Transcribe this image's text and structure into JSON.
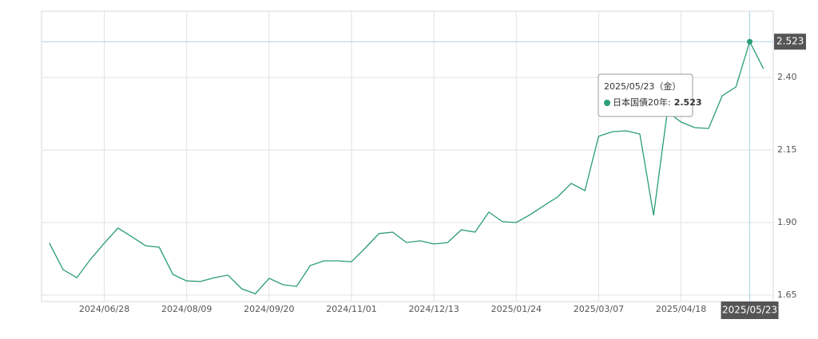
{
  "chart_data": {
    "type": "line",
    "x": [
      "2024/05/31",
      "2024/06/07",
      "2024/06/14",
      "2024/06/21",
      "2024/06/28",
      "2024/07/05",
      "2024/07/12",
      "2024/07/19",
      "2024/07/26",
      "2024/08/02",
      "2024/08/09",
      "2024/08/16",
      "2024/08/23",
      "2024/08/30",
      "2024/09/06",
      "2024/09/13",
      "2024/09/20",
      "2024/09/27",
      "2024/10/04",
      "2024/10/11",
      "2024/10/18",
      "2024/10/25",
      "2024/11/01",
      "2024/11/08",
      "2024/11/15",
      "2024/11/22",
      "2024/11/29",
      "2024/12/06",
      "2024/12/13",
      "2024/12/20",
      "2024/12/27",
      "2025/01/03",
      "2025/01/10",
      "2025/01/17",
      "2025/01/24",
      "2025/01/31",
      "2025/02/07",
      "2025/02/14",
      "2025/02/21",
      "2025/02/28",
      "2025/03/07",
      "2025/03/14",
      "2025/03/21",
      "2025/03/28",
      "2025/04/04",
      "2025/04/11",
      "2025/04/18",
      "2025/04/25",
      "2025/05/02",
      "2025/05/09",
      "2025/05/16",
      "2025/05/23",
      "2025/05/30"
    ],
    "series": [
      {
        "color": "#2a9d74",
        "values": [
          1.829,
          1.738,
          1.71,
          1.774,
          1.829,
          1.881,
          1.851,
          1.82,
          1.815,
          1.721,
          1.699,
          1.697,
          1.71,
          1.719,
          1.672,
          1.655,
          1.708,
          1.686,
          1.68,
          1.752,
          1.768,
          1.768,
          1.765,
          1.812,
          1.862,
          1.867,
          1.831,
          1.837,
          1.826,
          1.831,
          1.875,
          1.867,
          1.936,
          1.903,
          1.9,
          1.927,
          1.958,
          1.988,
          2.035,
          2.01,
          2.197,
          2.213,
          2.216,
          2.205,
          1.925,
          2.282,
          2.246,
          2.227,
          2.224,
          2.337,
          2.367,
          2.523,
          2.43
        ]
      }
    ],
    "xlim": [
      "2024/05/27",
      "2025/06/04"
    ],
    "xticks": [
      "2024/06/28",
      "2024/08/09",
      "2024/09/20",
      "2024/11/01",
      "2024/12/13",
      "2025/01/24",
      "2025/03/07",
      "2025/04/18"
    ],
    "ylim": [
      1.628,
      2.628
    ],
    "yticks": [
      1.65,
      {
        "value": 1.9,
        "label": "1.90"
      },
      2.15,
      {
        "value": 2.4,
        "label": "2.40"
      }
    ],
    "grid": true,
    "highlight_index": 51,
    "tooltip": {
      "title": "2025/05/23（金）",
      "label": "日本国債20年:"
    }
  }
}
